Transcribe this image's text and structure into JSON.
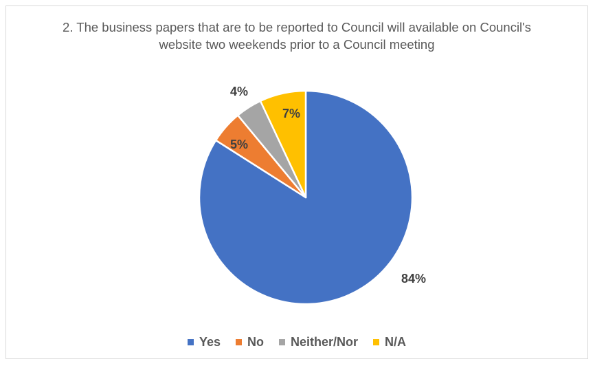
{
  "chart_data": {
    "type": "pie",
    "title_lines": [
      "2. The business papers that are to be reported to Council will available on Council's",
      "website two weekends prior to a Council meeting"
    ],
    "categories": [
      "Yes",
      "No",
      "Neither/Nor",
      "N/A"
    ],
    "values": [
      84,
      5,
      4,
      7
    ],
    "data_labels": [
      "84%",
      "5%",
      "4%",
      "7%"
    ],
    "colors": [
      "#4472c4",
      "#ed7d31",
      "#a5a5a5",
      "#ffc000"
    ],
    "start_angle_deg": 0,
    "direction": "clockwise",
    "legend_position": "bottom"
  }
}
